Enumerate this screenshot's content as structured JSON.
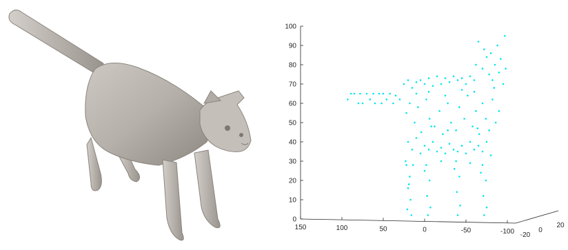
{
  "left_panel": {
    "subject_icon": "cat-3d-mesh-render"
  },
  "chart_data": {
    "type": "scatter",
    "title": "",
    "xlabel": "",
    "ylabel": "",
    "zlabel": "",
    "grid": false,
    "legend": "none",
    "marker_color": "#00e5ee",
    "axis_color": "#262626",
    "z_ticks": [
      "0",
      "10",
      "20",
      "30",
      "40",
      "50",
      "60",
      "70",
      "80",
      "90",
      "100"
    ],
    "x_ticks": [
      "150",
      "100",
      "50",
      "0",
      "-50",
      "-100"
    ],
    "y_ticks": [
      "-20",
      "0",
      "20"
    ],
    "zlim": [
      0,
      100
    ],
    "xlim": [
      150,
      -100
    ],
    "view": "3d-perspective",
    "points": [
      [
        93,
        62
      ],
      [
        89,
        65
      ],
      [
        85,
        65
      ],
      [
        80,
        60
      ],
      [
        78,
        65
      ],
      [
        75,
        60
      ],
      [
        70,
        65
      ],
      [
        66,
        62
      ],
      [
        62,
        65
      ],
      [
        60,
        60
      ],
      [
        55,
        65
      ],
      [
        52,
        60
      ],
      [
        50,
        65
      ],
      [
        46,
        62
      ],
      [
        42,
        65
      ],
      [
        38,
        60
      ],
      [
        35,
        64
      ],
      [
        30,
        62
      ],
      [
        25,
        70
      ],
      [
        20,
        72
      ],
      [
        15,
        68
      ],
      [
        10,
        71
      ],
      [
        5,
        72
      ],
      [
        0,
        70
      ],
      [
        -5,
        73
      ],
      [
        -10,
        69
      ],
      [
        -15,
        74
      ],
      [
        -20,
        70
      ],
      [
        -25,
        73
      ],
      [
        -30,
        71
      ],
      [
        -35,
        74
      ],
      [
        -40,
        72
      ],
      [
        -45,
        73
      ],
      [
        -50,
        70
      ],
      [
        -55,
        74
      ],
      [
        -60,
        72
      ],
      [
        -62,
        80
      ],
      [
        -65,
        92
      ],
      [
        -70,
        78
      ],
      [
        -72,
        88
      ],
      [
        -75,
        84
      ],
      [
        -78,
        75
      ],
      [
        -80,
        86
      ],
      [
        -82,
        72
      ],
      [
        -85,
        80
      ],
      [
        -88,
        90
      ],
      [
        -90,
        76
      ],
      [
        -92,
        83
      ],
      [
        -95,
        70
      ],
      [
        -97,
        95
      ],
      [
        -98,
        78
      ],
      [
        22,
        55
      ],
      [
        18,
        60
      ],
      [
        12,
        50
      ],
      [
        8,
        58
      ],
      [
        4,
        45
      ],
      [
        -2,
        62
      ],
      [
        -6,
        52
      ],
      [
        -12,
        48
      ],
      [
        -18,
        56
      ],
      [
        -22,
        44
      ],
      [
        -28,
        60
      ],
      [
        -32,
        50
      ],
      [
        -38,
        46
      ],
      [
        -42,
        58
      ],
      [
        -48,
        52
      ],
      [
        -52,
        64
      ],
      [
        -58,
        48
      ],
      [
        -62,
        56
      ],
      [
        -66,
        44
      ],
      [
        -70,
        60
      ],
      [
        -74,
        52
      ],
      [
        -78,
        46
      ],
      [
        -82,
        62
      ],
      [
        -86,
        50
      ],
      [
        -90,
        56
      ],
      [
        20,
        40
      ],
      [
        15,
        36
      ],
      [
        10,
        42
      ],
      [
        5,
        34
      ],
      [
        0,
        38
      ],
      [
        -5,
        36
      ],
      [
        -10,
        40
      ],
      [
        -15,
        35
      ],
      [
        -20,
        37
      ],
      [
        -25,
        34
      ],
      [
        -30,
        39
      ],
      [
        -35,
        36
      ],
      [
        -40,
        35
      ],
      [
        -45,
        38
      ],
      [
        -50,
        34
      ],
      [
        -55,
        40
      ],
      [
        -60,
        36
      ],
      [
        -65,
        38
      ],
      [
        -70,
        35
      ],
      [
        -75,
        40
      ],
      [
        -80,
        33
      ],
      [
        22,
        28
      ],
      [
        18,
        22
      ],
      [
        20,
        16
      ],
      [
        17,
        10
      ],
      [
        21,
        5
      ],
      [
        16,
        2
      ],
      [
        23,
        30
      ],
      [
        19,
        18
      ],
      [
        -2,
        28
      ],
      [
        -6,
        20
      ],
      [
        -3,
        12
      ],
      [
        -7,
        6
      ],
      [
        -4,
        2
      ],
      [
        0,
        25
      ],
      [
        -38,
        30
      ],
      [
        -42,
        22
      ],
      [
        -39,
        14
      ],
      [
        -43,
        7
      ],
      [
        -40,
        2
      ],
      [
        -36,
        26
      ],
      [
        -70,
        28
      ],
      [
        -74,
        20
      ],
      [
        -71,
        12
      ],
      [
        -75,
        6
      ],
      [
        -72,
        2
      ],
      [
        -68,
        24
      ],
      [
        10,
        65
      ],
      [
        -5,
        66
      ],
      [
        -25,
        64
      ],
      [
        -45,
        67
      ],
      [
        -60,
        66
      ],
      [
        -84,
        68
      ],
      [
        14,
        28
      ],
      [
        -20,
        30
      ],
      [
        -55,
        29
      ],
      [
        -28,
        46
      ],
      [
        -8,
        48
      ],
      [
        -64,
        47
      ]
    ]
  }
}
